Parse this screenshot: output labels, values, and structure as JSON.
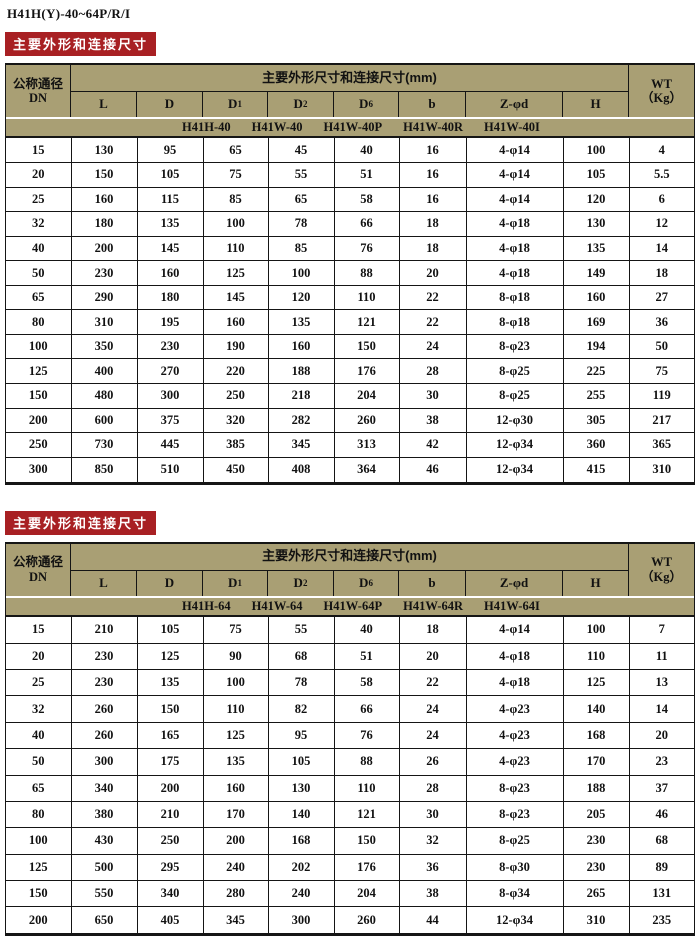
{
  "page_title": "H41H(Y)-40~64P/R/I",
  "section_label": "主要外形和连接尺寸",
  "table_header": {
    "dn_label_line1": "公称通径",
    "dn_label_line2": "DN",
    "dims_span_label": "主要外形尺寸和连接尺寸(mm)",
    "wt_line1": "WT",
    "wt_line2": "（Kg）",
    "columns": [
      {
        "key": "l",
        "main": "L",
        "sub": ""
      },
      {
        "key": "d",
        "main": "D",
        "sub": ""
      },
      {
        "key": "d1",
        "main": "D",
        "sub": "1"
      },
      {
        "key": "d2",
        "main": "D",
        "sub": "2"
      },
      {
        "key": "d6",
        "main": "D",
        "sub": "6"
      },
      {
        "key": "b",
        "main": "b",
        "sub": ""
      },
      {
        "key": "z-phi-d",
        "main": "Z-φd",
        "sub": ""
      },
      {
        "key": "h",
        "main": "H",
        "sub": ""
      }
    ]
  },
  "tables": [
    {
      "models": [
        "H41H-40",
        "H41W-40",
        "H41W-40P",
        "H41W-40R",
        "H41W-40I"
      ],
      "rows": [
        [
          "15",
          "130",
          "95",
          "65",
          "45",
          "40",
          "16",
          "4-φ14",
          "100",
          "4"
        ],
        [
          "20",
          "150",
          "105",
          "75",
          "55",
          "51",
          "16",
          "4-φ14",
          "105",
          "5.5"
        ],
        [
          "25",
          "160",
          "115",
          "85",
          "65",
          "58",
          "16",
          "4-φ14",
          "120",
          "6"
        ],
        [
          "32",
          "180",
          "135",
          "100",
          "78",
          "66",
          "18",
          "4-φ18",
          "130",
          "12"
        ],
        [
          "40",
          "200",
          "145",
          "110",
          "85",
          "76",
          "18",
          "4-φ18",
          "135",
          "14"
        ],
        [
          "50",
          "230",
          "160",
          "125",
          "100",
          "88",
          "20",
          "4-φ18",
          "149",
          "18"
        ],
        [
          "65",
          "290",
          "180",
          "145",
          "120",
          "110",
          "22",
          "8-φ18",
          "160",
          "27"
        ],
        [
          "80",
          "310",
          "195",
          "160",
          "135",
          "121",
          "22",
          "8-φ18",
          "169",
          "36"
        ],
        [
          "100",
          "350",
          "230",
          "190",
          "160",
          "150",
          "24",
          "8-φ23",
          "194",
          "50"
        ],
        [
          "125",
          "400",
          "270",
          "220",
          "188",
          "176",
          "28",
          "8-φ25",
          "225",
          "75"
        ],
        [
          "150",
          "480",
          "300",
          "250",
          "218",
          "204",
          "30",
          "8-φ25",
          "255",
          "119"
        ],
        [
          "200",
          "600",
          "375",
          "320",
          "282",
          "260",
          "38",
          "12-φ30",
          "305",
          "217"
        ],
        [
          "250",
          "730",
          "445",
          "385",
          "345",
          "313",
          "42",
          "12-φ34",
          "360",
          "365"
        ],
        [
          "300",
          "850",
          "510",
          "450",
          "408",
          "364",
          "46",
          "12-φ34",
          "415",
          "310"
        ]
      ]
    },
    {
      "models": [
        "H41H-64",
        "H41W-64",
        "H41W-64P",
        "H41W-64R",
        "H41W-64I"
      ],
      "rows": [
        [
          "15",
          "210",
          "105",
          "75",
          "55",
          "40",
          "18",
          "4-φ14",
          "100",
          "7"
        ],
        [
          "20",
          "230",
          "125",
          "90",
          "68",
          "51",
          "20",
          "4-φ18",
          "110",
          "11"
        ],
        [
          "25",
          "230",
          "135",
          "100",
          "78",
          "58",
          "22",
          "4-φ18",
          "125",
          "13"
        ],
        [
          "32",
          "260",
          "150",
          "110",
          "82",
          "66",
          "24",
          "4-φ23",
          "140",
          "14"
        ],
        [
          "40",
          "260",
          "165",
          "125",
          "95",
          "76",
          "24",
          "4-φ23",
          "168",
          "20"
        ],
        [
          "50",
          "300",
          "175",
          "135",
          "105",
          "88",
          "26",
          "4-φ23",
          "170",
          "23"
        ],
        [
          "65",
          "340",
          "200",
          "160",
          "130",
          "110",
          "28",
          "8-φ23",
          "188",
          "37"
        ],
        [
          "80",
          "380",
          "210",
          "170",
          "140",
          "121",
          "30",
          "8-φ23",
          "205",
          "46"
        ],
        [
          "100",
          "430",
          "250",
          "200",
          "168",
          "150",
          "32",
          "8-φ25",
          "230",
          "68"
        ],
        [
          "125",
          "500",
          "295",
          "240",
          "202",
          "176",
          "36",
          "8-φ30",
          "230",
          "89"
        ],
        [
          "150",
          "550",
          "340",
          "280",
          "240",
          "204",
          "38",
          "8-φ34",
          "265",
          "131"
        ],
        [
          "200",
          "650",
          "405",
          "345",
          "300",
          "260",
          "44",
          "12-φ34",
          "310",
          "235"
        ]
      ]
    }
  ],
  "colors": {
    "header_bg": "#a99f74",
    "banner_bg": "#a82023",
    "banner_text": "#ffffff",
    "border": "#151515",
    "row_bg": "#ffffff"
  }
}
